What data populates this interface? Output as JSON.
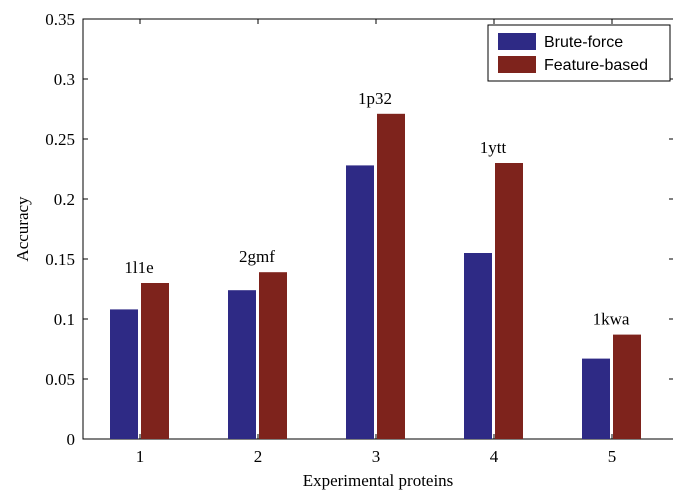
{
  "chart_data": {
    "type": "bar",
    "title": "",
    "xlabel": "Experimental proteins",
    "ylabel": "Accuracy",
    "categories": [
      "1",
      "2",
      "3",
      "4",
      "5"
    ],
    "series": [
      {
        "name": "Brute-force",
        "color": "#2e2a85",
        "values": [
          0.108,
          0.124,
          0.228,
          0.155,
          0.067
        ]
      },
      {
        "name": "Feature-based",
        "color": "#7e231c",
        "values": [
          0.13,
          0.139,
          0.271,
          0.23,
          0.087
        ]
      }
    ],
    "annotations": [
      "1l1e",
      "2gmf",
      "1p32",
      "1ytt",
      "1kwa"
    ],
    "ylim": [
      0,
      0.35
    ],
    "yticks": [
      "0",
      "0.05",
      "0.1",
      "0.15",
      "0.2",
      "0.25",
      "0.3",
      "0.35"
    ],
    "grid": false,
    "legend_position": "top-right"
  }
}
